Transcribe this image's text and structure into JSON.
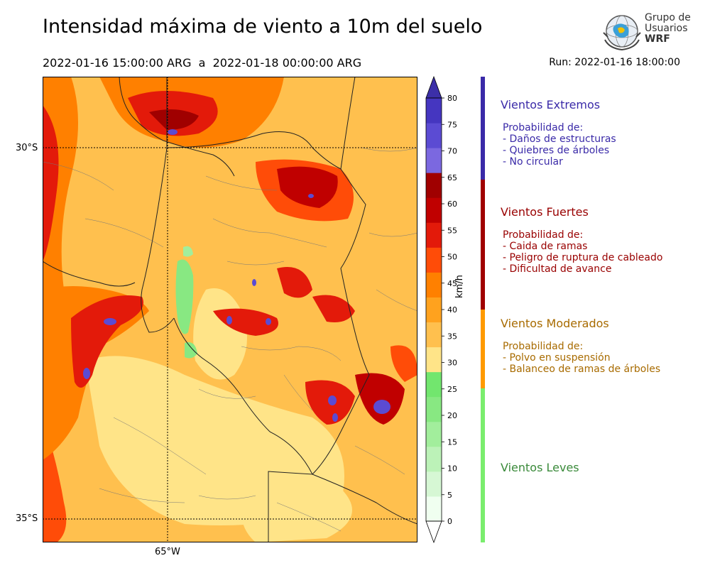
{
  "title": "Intensidad máxima de viento a 10m del suelo",
  "subtitle": "2022-01-16 15:00:00 ARG  a  2022-01-18 00:00:00 ARG",
  "run": "Run: 2022-01-16 18:00:00",
  "logo": {
    "line1": "Grupo de",
    "line2": "Usuarios",
    "line3": "WRF"
  },
  "map": {
    "lat_labels": [
      "30°S",
      "35°S"
    ],
    "lon_labels": [
      "65°W"
    ],
    "lat_range": [
      -35.3,
      -29.0
    ],
    "lon_range": [
      -66.65,
      -61.65
    ]
  },
  "colorbar": {
    "unit": "km/h",
    "ticks": [
      "0",
      "5",
      "10",
      "15",
      "20",
      "25",
      "30",
      "35",
      "40",
      "45",
      "50",
      "55",
      "60",
      "65",
      "70",
      "75",
      "80"
    ],
    "colors": [
      "#f0fff0",
      "#d6f7d4",
      "#bcf2b8",
      "#a2ee9c",
      "#88e882",
      "#72e66e",
      "#ffe488",
      "#ffc04e",
      "#ffa21e",
      "#ff8000",
      "#ff4c08",
      "#e31a0a",
      "#c00000",
      "#a00000",
      "#7b68e0",
      "#5b4bd3",
      "#4536c0"
    ]
  },
  "legend": [
    {
      "title": "Vientos Extremos",
      "color": "#3a2aa8",
      "lines": [
        "Probabilidad de:",
        "- Daños de estructuras",
        "- Quiebres de árboles",
        "- No circular"
      ]
    },
    {
      "title": "Vientos Fuertes",
      "color": "#990000",
      "lines": [
        "Probabilidad de:",
        "- Caida de ramas",
        "- Peligro de ruptura de cableado",
        "- Dificultad de avance"
      ]
    },
    {
      "title": "Vientos Moderados",
      "color": "#a86b00",
      "lines": [
        "Probabilidad de:",
        "- Polvo en suspensión",
        "- Balanceo de ramas de árboles"
      ]
    },
    {
      "title": "Vientos Leves",
      "color": "#3a8a3a",
      "lines": []
    }
  ],
  "legend_bar_colors": [
    "#3a2aa8",
    "#a00000",
    "#ff9a00",
    "#7aed6e"
  ]
}
